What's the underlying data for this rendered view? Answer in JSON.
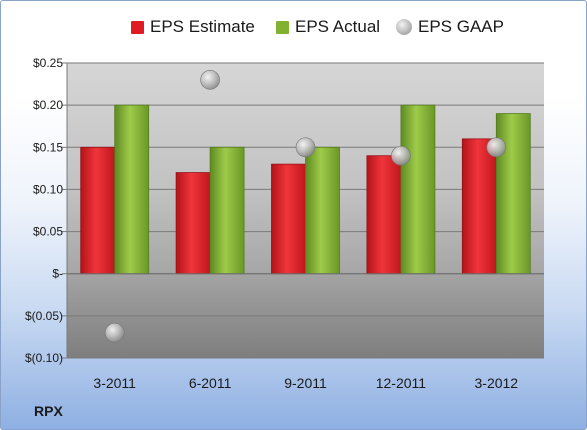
{
  "chart_data": {
    "type": "bar",
    "ticker": "RPX",
    "categories": [
      "3-2011",
      "6-2011",
      "9-2011",
      "12-2011",
      "3-2012"
    ],
    "series": [
      {
        "name": "EPS Estimate",
        "kind": "bar",
        "color": "#e01b23",
        "values": [
          0.15,
          0.12,
          0.13,
          0.14,
          0.16
        ]
      },
      {
        "name": "EPS Actual",
        "kind": "bar",
        "color": "#82b130",
        "values": [
          0.2,
          0.15,
          0.15,
          0.2,
          0.19
        ]
      },
      {
        "name": "EPS GAAP",
        "kind": "scatter",
        "color": "#b0b0b0",
        "values": [
          -0.07,
          0.23,
          0.15,
          0.14,
          0.15
        ]
      }
    ],
    "ylim": [
      -0.1,
      0.25
    ],
    "yticks": [
      {
        "value": 0.25,
        "label": "$0.25"
      },
      {
        "value": 0.2,
        "label": "$0.20"
      },
      {
        "value": 0.15,
        "label": "$0.15"
      },
      {
        "value": 0.1,
        "label": "$0.10"
      },
      {
        "value": 0.05,
        "label": "$0.05"
      },
      {
        "value": 0.0,
        "label": "$-"
      },
      {
        "value": -0.05,
        "label": "$(0.05)"
      },
      {
        "value": -0.1,
        "label": "$(0.10)"
      }
    ],
    "legend_position": "top",
    "grid": true
  }
}
